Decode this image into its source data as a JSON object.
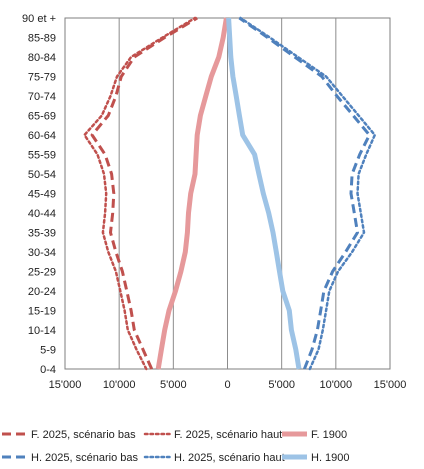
{
  "chart_data": {
    "type": "line",
    "title": "",
    "xlabel": "",
    "ylabel": "",
    "orientation": "population-pyramid",
    "categories": [
      "0-4",
      "5-9",
      "10-14",
      "15-19",
      "20-24",
      "25-29",
      "30-34",
      "35-39",
      "40-44",
      "45-49",
      "50-54",
      "55-59",
      "60-64",
      "65-69",
      "70-74",
      "75-79",
      "80-84",
      "85-89",
      "90 et +"
    ],
    "xlim": [
      -15000,
      15000
    ],
    "x_ticks": [
      -15000,
      -10000,
      -5000,
      0,
      5000,
      10000,
      15000
    ],
    "x_tick_labels": [
      "15'000",
      "10'000",
      "5'000",
      "0",
      "5'000",
      "10'000",
      "15'000"
    ],
    "grid": "vertical",
    "legend_position": "bottom",
    "series": [
      {
        "name": "F. 2025, scénario bas",
        "color": "#c0504d",
        "style": "dashed",
        "side": "left",
        "values": [
          7000,
          7800,
          8600,
          8900,
          9300,
          9700,
          10300,
          10800,
          10600,
          10500,
          10700,
          11300,
          12500,
          11000,
          10300,
          9800,
          8600,
          5800,
          2800
        ]
      },
      {
        "name": "F. 2025, scénario haut",
        "color": "#c0504d",
        "style": "dotted",
        "side": "left",
        "values": [
          7500,
          8400,
          9200,
          9500,
          9900,
          10300,
          11000,
          11500,
          11300,
          11200,
          11400,
          12000,
          13200,
          11600,
          10800,
          10200,
          8900,
          6000,
          3000
        ]
      },
      {
        "name": "F. 1900",
        "color": "#e6999b",
        "style": "solid",
        "side": "left",
        "values": [
          6400,
          6100,
          5800,
          5400,
          4800,
          4300,
          3900,
          3700,
          3600,
          3400,
          3000,
          2900,
          2800,
          2500,
          2000,
          1500,
          800,
          400,
          100
        ]
      },
      {
        "name": "H. 2025, scénario bas",
        "color": "#4f81bd",
        "style": "dashed",
        "side": "right",
        "values": [
          7100,
          7800,
          8300,
          8600,
          8900,
          9700,
          10900,
          12000,
          11700,
          11400,
          11500,
          12200,
          13100,
          11600,
          10100,
          8700,
          6200,
          3700,
          1100
        ]
      },
      {
        "name": "H. 2025, scénario haut",
        "color": "#4f81bd",
        "style": "dotted",
        "side": "right",
        "values": [
          7600,
          8400,
          8800,
          9100,
          9400,
          10200,
          11500,
          12600,
          12300,
          12000,
          12100,
          12800,
          13600,
          12100,
          10600,
          9100,
          6500,
          3900,
          1200
        ]
      },
      {
        "name": "H. 1900",
        "color": "#9dc3e6",
        "style": "solid",
        "side": "right",
        "values": [
          6600,
          6300,
          5900,
          5700,
          5100,
          4800,
          4500,
          4200,
          3800,
          3300,
          2900,
          2500,
          1400,
          1100,
          800,
          500,
          300,
          200,
          100
        ]
      }
    ]
  }
}
